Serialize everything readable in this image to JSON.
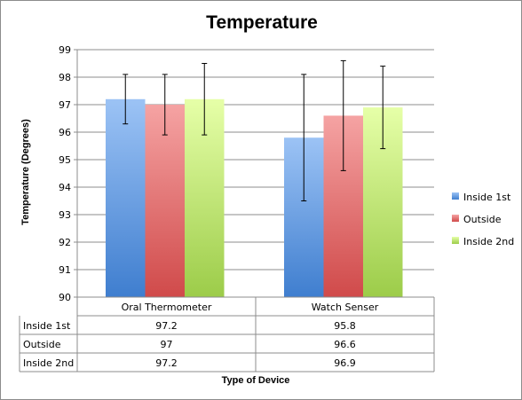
{
  "chart_data": {
    "type": "bar",
    "title": "Temperature",
    "xlabel": "Type of Device",
    "ylabel": "Temperature (Degrees)",
    "ylim": [
      90,
      99
    ],
    "yticks": [
      "90",
      "91",
      "92",
      "93",
      "94",
      "95",
      "96",
      "97",
      "98",
      "99"
    ],
    "grid": true,
    "legend_position": "right",
    "categories": [
      "Oral Thermometer",
      "Watch Senser"
    ],
    "series": [
      {
        "name": "Inside 1st",
        "values": [
          97.2,
          95.8
        ],
        "labels": [
          "97.2",
          "95.8"
        ],
        "error_low": [
          96.3,
          93.5
        ],
        "error_high": [
          98.1,
          98.1
        ],
        "color_top": "#9cc3f5",
        "color_bottom": "#3f7ecf"
      },
      {
        "name": "Outside",
        "values": [
          97,
          96.6
        ],
        "labels": [
          "97",
          "96.6"
        ],
        "error_low": [
          95.9,
          94.6
        ],
        "error_high": [
          98.1,
          98.6
        ],
        "color_top": "#f5a3a3",
        "color_bottom": "#d04a4a"
      },
      {
        "name": "Inside 2nd",
        "values": [
          97.2,
          96.9
        ],
        "labels": [
          "97.2",
          "96.9"
        ],
        "error_low": [
          95.9,
          95.4
        ],
        "error_high": [
          98.5,
          98.4
        ],
        "color_top": "#e6ffa8",
        "color_bottom": "#9ccc49"
      }
    ]
  }
}
